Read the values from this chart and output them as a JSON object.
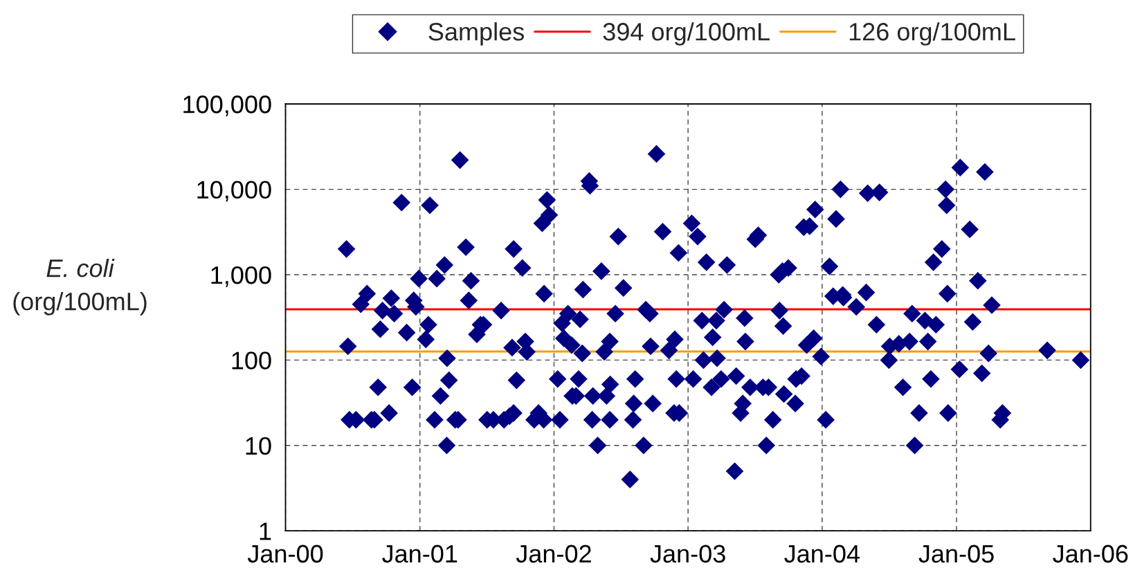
{
  "chart_data": {
    "type": "scatter",
    "ylabel": "E. coli\n(org/100mL)",
    "log": "y",
    "grid": true,
    "legend": "top",
    "marker": "diamond",
    "xlim": [
      "2000-01-01",
      "2006-01-01"
    ],
    "xticks": [
      {
        "value": "2000-01-01",
        "label": "Jan-00"
      },
      {
        "value": "2001-01-01",
        "label": "Jan-01"
      },
      {
        "value": "2002-01-01",
        "label": "Jan-02"
      },
      {
        "value": "2003-01-01",
        "label": "Jan-03"
      },
      {
        "value": "2004-01-01",
        "label": "Jan-04"
      },
      {
        "value": "2005-01-01",
        "label": "Jan-05"
      },
      {
        "value": "2006-01-01",
        "label": "Jan-06"
      }
    ],
    "ylim": [
      1,
      100000
    ],
    "yticks": [
      1,
      10,
      100,
      {
        "value": 1000,
        "label": "1,000"
      },
      {
        "value": 10000,
        "label": "10,000"
      },
      {
        "value": 100000,
        "label": "100,000"
      }
    ],
    "ref_lines": [
      {
        "axis": "y",
        "value": 394,
        "label": "394 org/100mL",
        "color": "#ff0000"
      },
      {
        "axis": "y",
        "value": 126,
        "label": "126 org/100mL",
        "color": "#ff9900"
      }
    ],
    "series": [
      {
        "name": "Samples",
        "color": "#000080",
        "x": [
          "2000-06-15",
          "2000-06-19",
          "2000-06-23",
          "2000-07-11",
          "2000-07-24",
          "2000-08-10",
          "2000-08-22",
          "2000-08-30",
          "2000-09-09",
          "2000-09-15",
          "2000-09-21",
          "2000-10-09",
          "2000-10-15",
          "2000-10-23",
          "2000-11-12",
          "2000-11-26",
          "2000-12-11",
          "2000-12-15",
          "2000-12-21",
          "2000-12-29",
          "2001-01-17",
          "2001-01-24",
          "2001-01-28",
          "2001-02-10",
          "2001-02-16",
          "2001-02-26",
          "2001-03-09",
          "2001-03-15",
          "2001-03-16",
          "2001-03-21",
          "2001-04-07",
          "2001-04-15",
          "2001-04-20",
          "2001-05-06",
          "2001-05-14",
          "2001-05-20",
          "2001-06-05",
          "2001-06-15",
          "2001-06-23",
          "2001-07-03",
          "2001-07-20",
          "2001-08-10",
          "2001-08-18",
          "2001-09-02",
          "2001-09-09",
          "2001-09-13",
          "2001-09-13",
          "2001-09-21",
          "2001-10-07",
          "2001-10-15",
          "2001-10-19",
          "2001-11-08",
          "2001-11-20",
          "2001-11-30",
          "2001-12-04",
          "2001-12-05",
          "2001-12-13",
          "2001-12-19",
          "2002-01-11",
          "2002-01-17",
          "2002-01-23",
          "2002-01-28",
          "2002-02-08",
          "2002-02-18",
          "2002-02-20",
          "2002-03-02",
          "2002-03-09",
          "2002-03-13",
          "2002-03-19",
          "2002-03-21",
          "2002-04-07",
          "2002-04-09",
          "2002-04-15",
          "2002-04-17",
          "2002-04-30",
          "2002-05-10",
          "2002-05-18",
          "2002-05-24",
          "2002-06-02",
          "2002-06-02",
          "2002-06-03",
          "2002-06-17",
          "2002-06-25",
          "2002-07-09",
          "2002-07-27",
          "2002-08-04",
          "2002-08-06",
          "2002-08-10",
          "2002-09-02",
          "2002-09-08",
          "2002-09-19",
          "2002-09-21",
          "2002-09-27",
          "2002-10-07",
          "2002-10-24",
          "2002-11-10",
          "2002-11-24",
          "2002-11-26",
          "2002-11-30",
          "2002-12-08",
          "2002-12-06",
          "2003-01-11",
          "2003-01-15",
          "2003-01-27",
          "2003-02-08",
          "2003-02-12",
          "2003-02-20",
          "2003-03-06",
          "2003-03-09",
          "2003-03-19",
          "2003-03-21",
          "2003-04-01",
          "2003-04-09",
          "2003-04-17",
          "2003-05-08",
          "2003-05-12",
          "2003-05-24",
          "2003-05-30",
          "2003-06-04",
          "2003-06-06",
          "2003-06-19",
          "2003-07-03",
          "2003-07-11",
          "2003-07-24",
          "2003-08-02",
          "2003-08-08",
          "2003-08-20",
          "2003-09-05",
          "2003-09-07",
          "2003-09-15",
          "2003-09-17",
          "2003-09-19",
          "2003-10-01",
          "2003-10-20",
          "2003-10-22",
          "2003-11-06",
          "2003-11-12",
          "2003-11-20",
          "2003-11-28",
          "2003-12-09",
          "2003-12-13",
          "2003-12-29",
          "2004-01-11",
          "2004-01-21",
          "2004-01-31",
          "2004-02-08",
          "2004-02-20",
          "2004-02-26",
          "2004-02-28",
          "2004-04-03",
          "2004-04-30",
          "2004-05-04",
          "2004-06-05",
          "2004-05-28",
          "2004-07-01",
          "2004-07-03",
          "2004-07-28",
          "2004-08-08",
          "2004-08-26",
          "2004-09-02",
          "2004-09-09",
          "2004-09-21",
          "2004-10-07",
          "2004-10-15",
          "2004-10-23",
          "2004-10-30",
          "2004-11-06",
          "2004-11-22",
          "2004-12-02",
          "2004-12-05",
          "2004-12-07",
          "2004-12-09",
          "2005-01-09",
          "2005-01-11",
          "2005-02-06",
          "2005-02-14",
          "2005-02-28",
          "2005-03-11",
          "2005-03-19",
          "2005-03-29",
          "2005-04-07",
          "2005-04-30",
          "2005-05-06",
          "2005-09-05",
          "2005-12-05"
        ],
        "values": [
          2000,
          145,
          20,
          20,
          450,
          600,
          20,
          20,
          48,
          230,
          380,
          24,
          530,
          350,
          7000,
          210,
          48,
          500,
          420,
          900,
          175,
          260,
          6500,
          20,
          900,
          38,
          1300,
          10,
          105,
          58,
          20,
          20,
          22000,
          2100,
          500,
          850,
          200,
          260,
          260,
          20,
          20,
          380,
          20,
          22,
          140,
          24,
          2000,
          58,
          1200,
          165,
          125,
          20,
          24,
          4000,
          20,
          600,
          7500,
          5000,
          60,
          20,
          270,
          180,
          350,
          150,
          38,
          38,
          60,
          300,
          120,
          670,
          12500,
          11000,
          20,
          38,
          10,
          1100,
          125,
          38,
          165,
          20,
          52,
          350,
          2800,
          700,
          4,
          20,
          31,
          60,
          10,
          390,
          350,
          145,
          31,
          26000,
          3200,
          130,
          24,
          175,
          60,
          24,
          1800,
          4000,
          60,
          2800,
          290,
          100,
          1400,
          48,
          185,
          290,
          105,
          60,
          390,
          1300,
          5,
          65,
          24,
          31,
          310,
          165,
          48,
          2600,
          2900,
          48,
          10,
          48,
          20,
          1000,
          380,
          1100,
          250,
          40,
          1200,
          31,
          60,
          65,
          3600,
          150,
          3700,
          180,
          5800,
          110,
          20,
          1250,
          560,
          4500,
          10000,
          580,
          540,
          420,
          620,
          9000,
          9200,
          260,
          100,
          145,
          155,
          48,
          165,
          350,
          10,
          24,
          290,
          165,
          60,
          1400,
          260,
          2000,
          10000,
          6500,
          600,
          24,
          78,
          18000,
          3400,
          280,
          850,
          70,
          16000,
          120,
          440,
          20,
          24,
          130,
          100
        ]
      }
    ]
  }
}
